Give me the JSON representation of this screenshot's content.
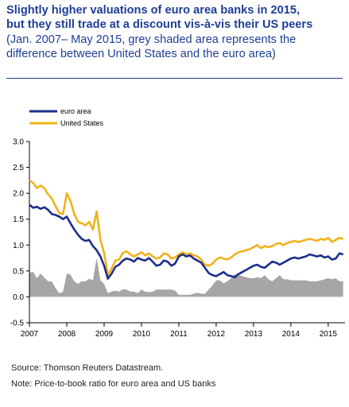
{
  "header": {
    "title_line1": "Slightly higher valuations of euro area banks in 2015,",
    "title_line2": "but they still trade at a discount vis-à-vis their US peers",
    "subtitle_line1": "(Jan. 2007– May 2015, grey shaded area represents the",
    "subtitle_line2": "difference between United States and the euro area)"
  },
  "footer": {
    "source": "Source: Thomson Reuters Datastream.",
    "note": "Note: Price-to-book ratio for euro area and US banks"
  },
  "colors": {
    "euro": "#1b2f8a",
    "us": "#f2b21b",
    "diff": "#a6a6a6",
    "axis": "#000000"
  },
  "chart_data": {
    "type": "line",
    "ylim": [
      -0.5,
      3.0
    ],
    "yticks": [
      "3.0",
      "2.5",
      "2.0",
      "1.5",
      "1.0",
      "0.5",
      "0.0",
      "-0.5"
    ],
    "xlim": [
      2007.0,
      2015.45
    ],
    "xticks": [
      "2007",
      "2008",
      "2009",
      "2010",
      "2011",
      "2012",
      "2013",
      "2014",
      "2015"
    ],
    "legend_position": "top-left",
    "series": [
      {
        "name": "euro area",
        "x": [
          2007.0,
          2007.1,
          2007.2,
          2007.3,
          2007.4,
          2007.5,
          2007.6,
          2007.7,
          2007.8,
          2007.9,
          2008.0,
          2008.1,
          2008.2,
          2008.3,
          2008.4,
          2008.5,
          2008.6,
          2008.7,
          2008.8,
          2008.9,
          2009.0,
          2009.1,
          2009.2,
          2009.3,
          2009.4,
          2009.5,
          2009.6,
          2009.7,
          2009.8,
          2009.9,
          2010.0,
          2010.1,
          2010.2,
          2010.3,
          2010.4,
          2010.5,
          2010.6,
          2010.7,
          2010.8,
          2010.9,
          2011.0,
          2011.1,
          2011.2,
          2011.3,
          2011.4,
          2011.5,
          2011.6,
          2011.7,
          2011.8,
          2011.9,
          2012.0,
          2012.1,
          2012.2,
          2012.3,
          2012.4,
          2012.5,
          2012.6,
          2012.7,
          2012.8,
          2012.9,
          2013.0,
          2013.1,
          2013.2,
          2013.3,
          2013.4,
          2013.5,
          2013.6,
          2013.7,
          2013.8,
          2013.9,
          2014.0,
          2014.1,
          2014.2,
          2014.3,
          2014.4,
          2014.5,
          2014.6,
          2014.7,
          2014.8,
          2014.9,
          2015.0,
          2015.1,
          2015.2,
          2015.3,
          2015.4
        ],
        "y": [
          1.78,
          1.72,
          1.74,
          1.7,
          1.73,
          1.68,
          1.6,
          1.58,
          1.55,
          1.5,
          1.55,
          1.42,
          1.3,
          1.2,
          1.12,
          1.08,
          1.1,
          0.98,
          0.9,
          0.78,
          0.6,
          0.35,
          0.45,
          0.58,
          0.62,
          0.7,
          0.74,
          0.72,
          0.68,
          0.75,
          0.72,
          0.7,
          0.75,
          0.68,
          0.6,
          0.62,
          0.7,
          0.68,
          0.6,
          0.64,
          0.78,
          0.82,
          0.78,
          0.8,
          0.74,
          0.7,
          0.66,
          0.56,
          0.46,
          0.42,
          0.4,
          0.44,
          0.48,
          0.42,
          0.4,
          0.38,
          0.44,
          0.48,
          0.52,
          0.56,
          0.6,
          0.62,
          0.58,
          0.56,
          0.62,
          0.68,
          0.66,
          0.62,
          0.66,
          0.7,
          0.74,
          0.76,
          0.74,
          0.76,
          0.78,
          0.82,
          0.8,
          0.78,
          0.8,
          0.76,
          0.78,
          0.72,
          0.74,
          0.84,
          0.82
        ]
      },
      {
        "name": "United States",
        "x": [
          2007.0,
          2007.1,
          2007.2,
          2007.3,
          2007.4,
          2007.5,
          2007.6,
          2007.7,
          2007.8,
          2007.9,
          2008.0,
          2008.1,
          2008.2,
          2008.3,
          2008.4,
          2008.5,
          2008.6,
          2008.7,
          2008.8,
          2008.9,
          2009.0,
          2009.1,
          2009.2,
          2009.3,
          2009.4,
          2009.5,
          2009.6,
          2009.7,
          2009.8,
          2009.9,
          2010.0,
          2010.1,
          2010.2,
          2010.3,
          2010.4,
          2010.5,
          2010.6,
          2010.7,
          2010.8,
          2010.9,
          2011.0,
          2011.1,
          2011.2,
          2011.3,
          2011.4,
          2011.5,
          2011.6,
          2011.7,
          2011.8,
          2011.9,
          2012.0,
          2012.1,
          2012.2,
          2012.3,
          2012.4,
          2012.5,
          2012.6,
          2012.7,
          2012.8,
          2012.9,
          2013.0,
          2013.1,
          2013.2,
          2013.3,
          2013.4,
          2013.5,
          2013.6,
          2013.7,
          2013.8,
          2013.9,
          2014.0,
          2014.1,
          2014.2,
          2014.3,
          2014.4,
          2014.5,
          2014.6,
          2014.7,
          2014.8,
          2014.9,
          2015.0,
          2015.1,
          2015.2,
          2015.3,
          2015.4
        ],
        "y": [
          2.25,
          2.2,
          2.1,
          2.15,
          2.1,
          1.98,
          1.9,
          1.75,
          1.62,
          1.6,
          2.0,
          1.85,
          1.6,
          1.45,
          1.42,
          1.38,
          1.45,
          1.3,
          1.65,
          1.1,
          0.85,
          0.42,
          0.55,
          0.7,
          0.72,
          0.85,
          0.88,
          0.82,
          0.78,
          0.82,
          0.86,
          0.8,
          0.84,
          0.78,
          0.74,
          0.76,
          0.84,
          0.82,
          0.74,
          0.76,
          0.82,
          0.86,
          0.82,
          0.84,
          0.8,
          0.78,
          0.72,
          0.62,
          0.6,
          0.64,
          0.72,
          0.76,
          0.74,
          0.72,
          0.76,
          0.82,
          0.86,
          0.88,
          0.9,
          0.92,
          0.96,
          1.0,
          0.94,
          0.98,
          0.96,
          0.98,
          1.02,
          1.04,
          1.0,
          1.04,
          1.06,
          1.08,
          1.06,
          1.08,
          1.1,
          1.12,
          1.1,
          1.08,
          1.12,
          1.1,
          1.14,
          1.06,
          1.1,
          1.14,
          1.12
        ]
      }
    ]
  }
}
